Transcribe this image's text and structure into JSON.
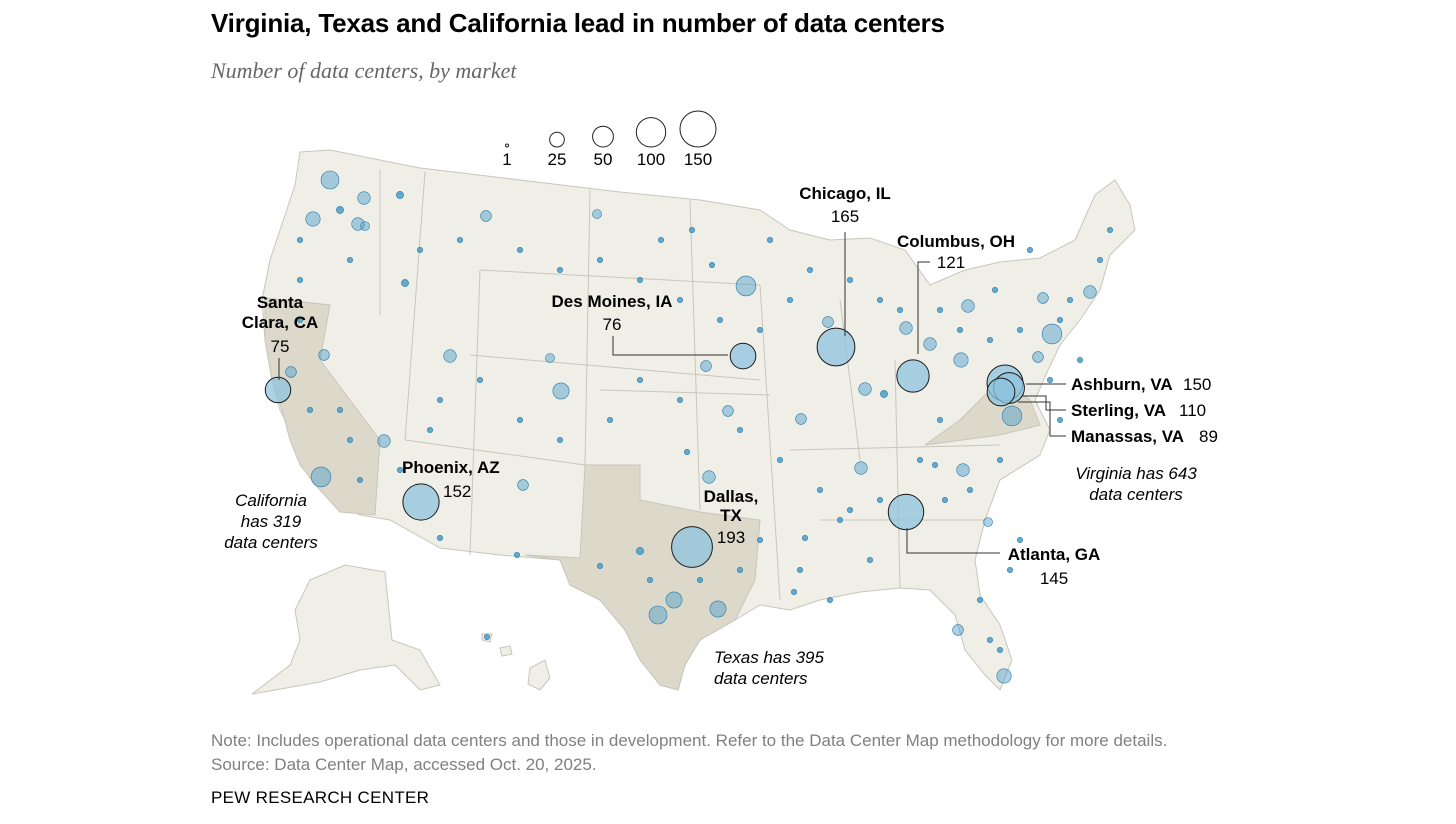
{
  "title": "Virginia, Texas and California lead in number of data centers",
  "subtitle": "Number of data centers, by market",
  "legend": {
    "title": "",
    "sizes": [
      {
        "label": "1",
        "value": 1
      },
      {
        "label": "25",
        "value": 25
      },
      {
        "label": "50",
        "value": 50
      },
      {
        "label": "100",
        "value": 100
      },
      {
        "label": "150",
        "value": 150
      }
    ]
  },
  "markets": [
    {
      "name": "Santa Clara, CA",
      "value": 75
    },
    {
      "name": "Phoenix, AZ",
      "value": 152
    },
    {
      "name": "Des Moines, IA",
      "value": 76
    },
    {
      "name": "Dallas, TX",
      "value": 193
    },
    {
      "name": "Chicago, IL",
      "value": 165
    },
    {
      "name": "Columbus, OH",
      "value": 121
    },
    {
      "name": "Atlanta, GA",
      "value": 145
    },
    {
      "name": "Ashburn, VA",
      "value": 150
    },
    {
      "name": "Sterling, VA",
      "value": 110
    },
    {
      "name": "Manassas, VA",
      "value": 89
    }
  ],
  "labels": {
    "santa_clara_1": "Santa",
    "santa_clara_2": "Clara, CA",
    "santa_clara_val": "75",
    "phoenix": "Phoenix, AZ",
    "phoenix_val": "152",
    "des_moines": "Des Moines, IA",
    "des_moines_val": "76",
    "dallas_1": "Dallas,",
    "dallas_2": "TX",
    "dallas_val": "193",
    "chicago": "Chicago, IL",
    "chicago_val": "165",
    "columbus": "Columbus, OH",
    "columbus_val": "121",
    "atlanta": "Atlanta, GA",
    "atlanta_val": "145",
    "ashburn": "Ashburn, VA",
    "ashburn_val": "150",
    "sterling": "Sterling, VA",
    "sterling_val": "110",
    "manassas": "Manassas, VA",
    "manassas_val": "89"
  },
  "state_notes": {
    "california_1": "California",
    "california_2": "has 319",
    "california_3": "data centers",
    "texas_1": "Texas has 395",
    "texas_2": "data centers",
    "virginia_1": "Virginia has 643",
    "virginia_2": "data centers"
  },
  "highlighted_states": [
    {
      "name": "California",
      "total": 319
    },
    {
      "name": "Texas",
      "total": 395
    },
    {
      "name": "Virginia",
      "total": 643
    }
  ],
  "colors": {
    "bubble": "#4a9cc9",
    "bubble_fill": "#8fc3de",
    "land": "#efeee7",
    "highlight": "#dcd9cb",
    "border": "#c8c6bc"
  },
  "note": "Note: Includes operational data centers and those in development. Refer to the Data Center Map methodology for more details.",
  "source": "Source: Data Center Map, accessed Oct. 20, 2025.",
  "brand": "PEW RESEARCH CENTER"
}
